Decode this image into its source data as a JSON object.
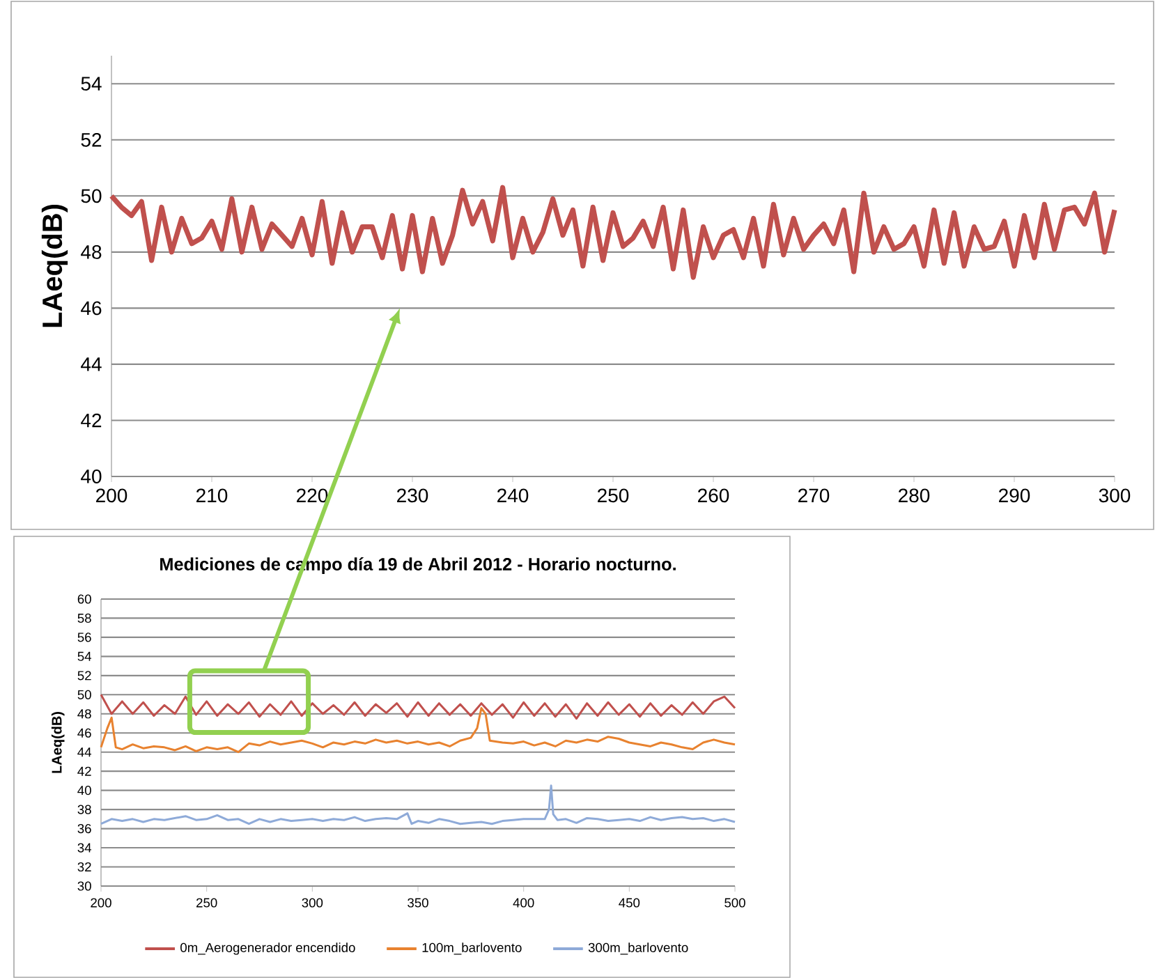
{
  "chart_data": [
    {
      "type": "line",
      "ylabel": "LAeq(dB)",
      "xlim": [
        200,
        300
      ],
      "xticks": [
        200,
        210,
        220,
        230,
        240,
        250,
        260,
        270,
        280,
        290,
        300
      ],
      "ylim": [
        40,
        55
      ],
      "yticks": [
        40,
        42,
        44,
        46,
        48,
        50,
        52,
        54
      ],
      "grid": "y",
      "marker": "none",
      "line_style": "solid",
      "x": [
        200,
        201,
        202,
        203,
        204,
        205,
        206,
        207,
        208,
        209,
        210,
        211,
        212,
        213,
        214,
        215,
        216,
        217,
        218,
        219,
        220,
        221,
        222,
        223,
        224,
        225,
        226,
        227,
        228,
        229,
        230,
        231,
        232,
        233,
        234,
        235,
        236,
        237,
        238,
        239,
        240,
        241,
        242,
        243,
        244,
        245,
        246,
        247,
        248,
        249,
        250,
        251,
        252,
        253,
        254,
        255,
        256,
        257,
        258,
        259,
        260,
        261,
        262,
        263,
        264,
        265,
        266,
        267,
        268,
        269,
        270,
        271,
        272,
        273,
        274,
        275,
        276,
        277,
        278,
        279,
        280,
        281,
        282,
        283,
        284,
        285,
        286,
        287,
        288,
        289,
        290,
        291,
        292,
        293,
        294,
        295,
        296,
        297,
        298,
        299,
        300
      ],
      "series": [
        {
          "color": "#c0504d",
          "values": [
            50.0,
            49.6,
            49.3,
            49.8,
            47.7,
            49.6,
            48.0,
            49.2,
            48.3,
            48.5,
            49.1,
            48.1,
            49.9,
            48.0,
            49.6,
            48.1,
            49.0,
            48.6,
            48.2,
            49.2,
            47.9,
            49.8,
            47.6,
            49.4,
            48.0,
            48.9,
            48.9,
            47.8,
            49.3,
            47.4,
            49.3,
            47.3,
            49.2,
            47.6,
            48.6,
            50.2,
            49.0,
            49.8,
            48.4,
            50.3,
            47.8,
            49.2,
            48.0,
            48.7,
            49.9,
            48.6,
            49.5,
            47.5,
            49.6,
            47.7,
            49.4,
            48.2,
            48.5,
            49.1,
            48.2,
            49.6,
            47.4,
            49.5,
            47.1,
            48.9,
            47.8,
            48.6,
            48.8,
            47.8,
            49.2,
            47.5,
            49.7,
            47.9,
            49.2,
            48.1,
            48.6,
            49.0,
            48.3,
            49.5,
            47.3,
            50.1,
            48.0,
            48.9,
            48.1,
            48.3,
            48.9,
            47.5,
            49.5,
            47.6,
            49.4,
            47.5,
            48.9,
            48.1,
            48.2,
            49.1,
            47.5,
            49.3,
            47.8,
            49.7,
            48.1,
            49.5,
            49.6,
            49.0,
            50.1,
            48.0,
            49.5
          ]
        }
      ]
    },
    {
      "type": "line",
      "title": "Mediciones de campo día 19 de Abril 2012 - Horario nocturno.",
      "ylabel": "LAeq(dB)",
      "xlim": [
        200,
        500
      ],
      "xticks": [
        200,
        250,
        300,
        350,
        400,
        450,
        500
      ],
      "ylim": [
        30,
        60
      ],
      "yticks": [
        30,
        32,
        34,
        36,
        38,
        40,
        42,
        44,
        46,
        48,
        50,
        52,
        54,
        56,
        58,
        60
      ],
      "grid": "y",
      "legend": "bottom",
      "marker": "none",
      "line_style": "solid",
      "series": [
        {
          "name": "0m_Aerogenerador encendido",
          "color": "#c0504d",
          "x": [
            200,
            205,
            210,
            215,
            220,
            225,
            230,
            235,
            240,
            245,
            250,
            255,
            260,
            265,
            270,
            275,
            280,
            285,
            290,
            295,
            300,
            305,
            310,
            315,
            320,
            325,
            330,
            335,
            340,
            345,
            350,
            355,
            360,
            365,
            370,
            375,
            380,
            385,
            390,
            395,
            400,
            405,
            410,
            415,
            420,
            425,
            430,
            435,
            440,
            445,
            450,
            455,
            460,
            465,
            470,
            475,
            480,
            485,
            490,
            495,
            500
          ],
          "values": [
            50.0,
            48.0,
            49.3,
            48.0,
            49.2,
            47.8,
            48.9,
            48.0,
            49.8,
            47.9,
            49.3,
            47.8,
            49.0,
            48.0,
            49.2,
            47.7,
            49.0,
            47.9,
            49.3,
            47.8,
            49.1,
            48.0,
            48.9,
            47.9,
            49.2,
            47.8,
            49.0,
            48.1,
            49.1,
            47.7,
            49.2,
            47.8,
            49.1,
            47.9,
            49.0,
            47.8,
            49.1,
            47.9,
            49.0,
            47.6,
            49.2,
            47.8,
            49.1,
            47.7,
            49.0,
            47.5,
            49.1,
            47.8,
            49.2,
            47.9,
            49.0,
            47.7,
            49.1,
            47.8,
            48.9,
            47.9,
            49.2,
            48.0,
            49.3,
            49.8,
            48.6
          ]
        },
        {
          "name": "100m_barlovento",
          "color": "#e8822f",
          "x": [
            200,
            203,
            205,
            207,
            210,
            215,
            220,
            225,
            230,
            235,
            240,
            245,
            250,
            255,
            260,
            265,
            270,
            275,
            280,
            285,
            290,
            295,
            300,
            305,
            310,
            315,
            320,
            325,
            330,
            335,
            340,
            345,
            350,
            355,
            360,
            365,
            370,
            375,
            378,
            380,
            382,
            384,
            390,
            395,
            400,
            405,
            410,
            415,
            420,
            425,
            430,
            435,
            440,
            445,
            450,
            455,
            460,
            465,
            470,
            475,
            480,
            485,
            490,
            495,
            500
          ],
          "values": [
            44.5,
            46.5,
            47.6,
            44.5,
            44.3,
            44.8,
            44.4,
            44.6,
            44.5,
            44.2,
            44.6,
            44.1,
            44.5,
            44.3,
            44.5,
            44.0,
            44.9,
            44.7,
            45.1,
            44.8,
            45.0,
            45.2,
            44.9,
            44.5,
            45.0,
            44.8,
            45.1,
            44.9,
            45.3,
            45.0,
            45.2,
            44.9,
            45.1,
            44.8,
            45.0,
            44.6,
            45.2,
            45.5,
            46.5,
            48.6,
            48.0,
            45.2,
            45.0,
            44.9,
            45.1,
            44.7,
            45.0,
            44.6,
            45.2,
            45.0,
            45.3,
            45.1,
            45.6,
            45.4,
            45.0,
            44.8,
            44.6,
            45.0,
            44.8,
            44.5,
            44.3,
            45.0,
            45.3,
            45.0,
            44.8
          ]
        },
        {
          "name": "300m_barlovento",
          "color": "#8eaad8",
          "x": [
            200,
            205,
            210,
            215,
            220,
            225,
            230,
            235,
            240,
            245,
            250,
            255,
            260,
            265,
            270,
            275,
            280,
            285,
            290,
            295,
            300,
            305,
            310,
            315,
            320,
            325,
            330,
            335,
            340,
            345,
            347,
            350,
            355,
            360,
            365,
            370,
            375,
            380,
            385,
            390,
            395,
            400,
            405,
            410,
            412,
            413,
            414,
            416,
            420,
            425,
            430,
            435,
            440,
            445,
            450,
            455,
            460,
            465,
            470,
            475,
            480,
            485,
            490,
            495,
            500
          ],
          "values": [
            36.5,
            37.0,
            36.8,
            37.0,
            36.7,
            37.0,
            36.9,
            37.1,
            37.3,
            36.9,
            37.0,
            37.4,
            36.9,
            37.0,
            36.5,
            37.0,
            36.7,
            37.0,
            36.8,
            36.9,
            37.0,
            36.8,
            37.0,
            36.9,
            37.2,
            36.8,
            37.0,
            37.1,
            37.0,
            37.6,
            36.5,
            36.8,
            36.6,
            37.0,
            36.8,
            36.5,
            36.6,
            36.7,
            36.5,
            36.8,
            36.9,
            37.0,
            37.0,
            37.0,
            38.0,
            40.5,
            37.5,
            36.9,
            37.0,
            36.6,
            37.1,
            37.0,
            36.8,
            36.9,
            37.0,
            36.8,
            37.2,
            36.9,
            37.1,
            37.2,
            37.0,
            37.1,
            36.8,
            37.0,
            36.7
          ]
        }
      ]
    }
  ]
}
